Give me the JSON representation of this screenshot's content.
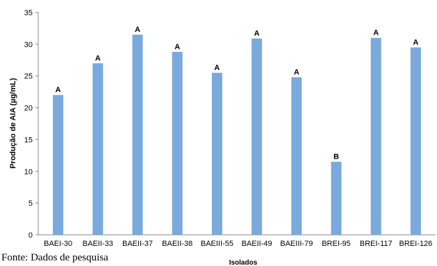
{
  "chart_data": {
    "type": "bar",
    "categories": [
      "BAEI-30",
      "BAEII-33",
      "BAEII-37",
      "BAEII-38",
      "BAEIII-55",
      "BAEII-49",
      "BAEIII-79",
      "BREI-95",
      "BREI-117",
      "BREI-126"
    ],
    "values": [
      22.0,
      27.0,
      31.5,
      28.8,
      25.5,
      30.9,
      24.8,
      11.5,
      31.0,
      29.5
    ],
    "bar_labels": [
      "A",
      "A",
      "A",
      "A",
      "A",
      "A",
      "A",
      "B",
      "A",
      "A"
    ],
    "xlabel": "Isolados",
    "ylabel": "Produção de AIA (µg/mL)",
    "ylim": [
      0,
      35
    ],
    "yticks": [
      0,
      5,
      10,
      15,
      20,
      25,
      30,
      35
    ],
    "grid": false,
    "bar_color": "#7aa9dc"
  },
  "caption": "Fonte: Dados de pesquisa"
}
